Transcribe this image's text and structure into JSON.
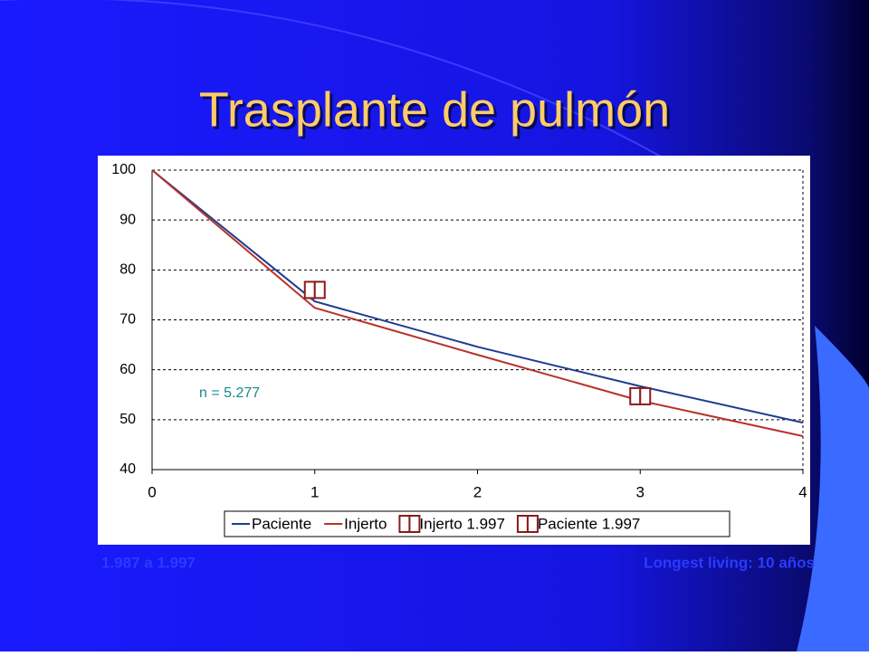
{
  "chart_data": {
    "type": "line",
    "title": "Trasplante de pulmón",
    "xlim": [
      0,
      4
    ],
    "xticks": [
      0,
      1,
      2,
      3,
      4
    ],
    "ylim": [
      40,
      100
    ],
    "yticks": [
      40,
      50,
      60,
      70,
      80,
      90,
      100
    ],
    "grid": true,
    "series": [
      {
        "name": "Paciente",
        "color": "#1f3c8f",
        "x": [
          0,
          1,
          2,
          3,
          4
        ],
        "values": [
          100,
          73.7,
          64.6,
          56.7,
          49.4
        ]
      },
      {
        "name": "Injerto",
        "color": "#b8322a",
        "x": [
          0,
          1,
          2,
          3,
          4
        ],
        "values": [
          100,
          72.4,
          63,
          53.8,
          46.7
        ]
      },
      {
        "name": "Injerto 1.997",
        "color": "#8b1a1a",
        "marker": true,
        "x": [
          1
        ],
        "values": [
          76
        ]
      },
      {
        "name": "Paciente 1.997",
        "color": "#8b1a1a",
        "marker": true,
        "x": [
          3
        ],
        "values": [
          54.7
        ]
      }
    ],
    "annotations": [
      "n = 5.277"
    ],
    "footer": {
      "left": "1.987 a 1.997",
      "right": "Longest living: 10 años"
    }
  }
}
